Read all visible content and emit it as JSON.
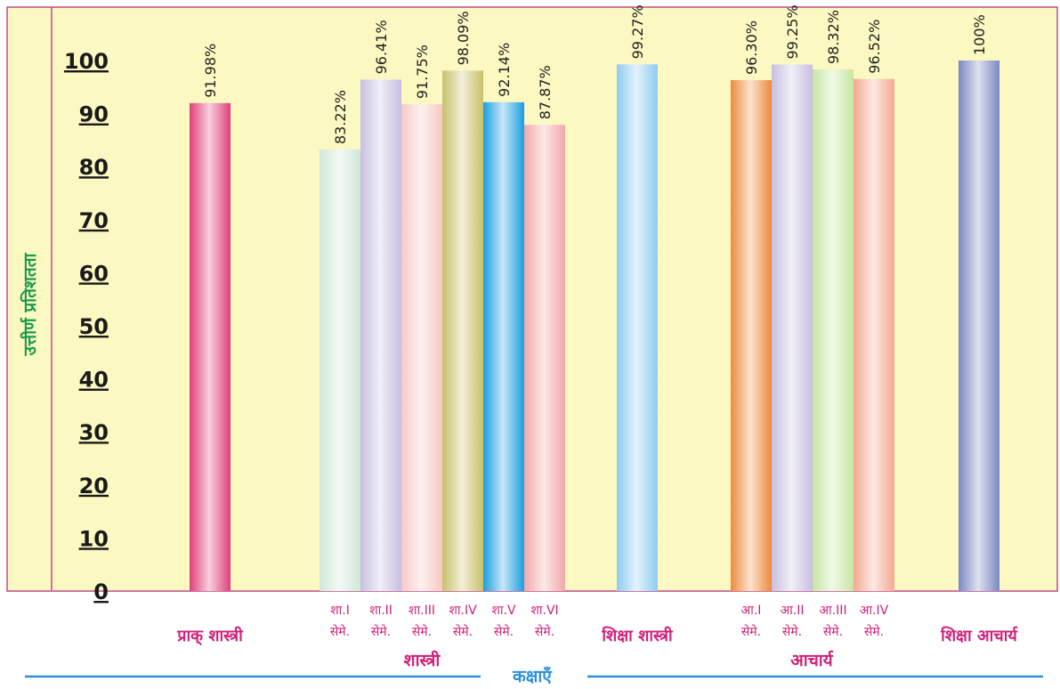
{
  "chart_data": {
    "type": "bar",
    "ylabel": "उत्तीर्ण प्रतिशतता",
    "xlabel": "कक्षाएँ",
    "ylim": [
      0,
      100
    ],
    "yticks": [
      "0",
      "10",
      "20",
      "30",
      "40",
      "50",
      "60",
      "70",
      "80",
      "90",
      "100"
    ],
    "bars": [
      {
        "line1": "प्राक् शास्त्री",
        "line2": "",
        "value": 91.98,
        "label": "91.98%",
        "color": "#e0407a",
        "single": true
      },
      {
        "line1": "शा.I",
        "line2": "सेमे.",
        "value": 83.22,
        "label": "83.22%",
        "color": "#cfe8d8",
        "single": false
      },
      {
        "line1": "शा.II",
        "line2": "सेमे.",
        "value": 96.41,
        "label": "96.41%",
        "color": "#c8bfe0",
        "single": false
      },
      {
        "line1": "शा.III",
        "line2": "सेमे.",
        "value": 91.75,
        "label": "91.75%",
        "color": "#f8c8c4",
        "single": false
      },
      {
        "line1": "शा.IV",
        "line2": "सेमे.",
        "value": 98.09,
        "label": "98.09%",
        "color": "#c9c06a",
        "single": false
      },
      {
        "line1": "शा.V",
        "line2": "सेमे.",
        "value": 92.14,
        "label": "92.14%",
        "color": "#1a9ee0",
        "single": false
      },
      {
        "line1": "शा.VI",
        "line2": "सेमे.",
        "value": 87.87,
        "label": "87.87%",
        "color": "#f2a8a8",
        "single": false
      },
      {
        "line1": "शिक्षा शास्त्री",
        "line2": "",
        "value": 99.27,
        "label": "99.27%",
        "color": "#8ecbf0",
        "single": true
      },
      {
        "line1": "आ.I",
        "line2": "सेमे.",
        "value": 96.3,
        "label": "96.30%",
        "color": "#ee8a3c",
        "single": false
      },
      {
        "line1": "आ.II",
        "line2": "सेमे.",
        "value": 99.25,
        "label": "99.25%",
        "color": "#c8bfe0",
        "single": false
      },
      {
        "line1": "आ.III",
        "line2": "सेमे.",
        "value": 98.32,
        "label": "98.32%",
        "color": "#c6e6a0",
        "single": false
      },
      {
        "line1": "आ.IV",
        "line2": "सेमे.",
        "value": 96.52,
        "label": "96.52%",
        "color": "#f4a890",
        "single": false
      },
      {
        "line1": "शिक्षा आचार्य",
        "line2": "",
        "value": 100,
        "label": "100%",
        "color": "#7a88c0",
        "single": true
      }
    ],
    "groups": [
      {
        "label": "शास्त्री"
      },
      {
        "label": "आचार्य"
      }
    ],
    "colors": {
      "plot_background": "#fbf8c2",
      "frame": "#c04a8a",
      "ylabel": "#1a9a4a",
      "category_text": "#d0217a",
      "xlabel_and_rule": "#2a8fd8"
    }
  }
}
